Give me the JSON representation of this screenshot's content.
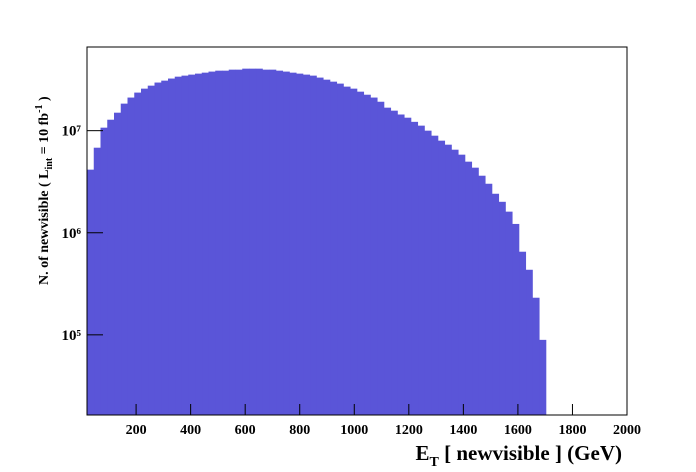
{
  "chart_data": {
    "type": "histogram",
    "x_label_parts": [
      "E",
      "T",
      " [ newvisible ] (GeV)"
    ],
    "y_label_parts": [
      "N. of newvisible ( L",
      "int",
      " = 10 fb",
      "-1",
      " )"
    ],
    "color": "#5a55d8",
    "log_y": true,
    "bins": [
      20,
      44.75,
      69.5,
      94.25,
      119,
      143.75,
      168.5,
      193.25,
      218,
      242.75,
      267.5,
      292.25,
      317,
      341.75,
      366.5,
      391.25,
      416,
      440.75,
      465.5,
      490.25,
      515,
      539.75,
      564.5,
      589.25,
      614,
      638.75,
      663.5,
      688.25,
      713,
      737.75,
      762.5,
      787.25,
      812,
      836.75,
      861.5,
      886.25,
      911,
      935.75,
      960.5,
      985.25,
      1010,
      1034.75,
      1059.5,
      1084.25,
      1109,
      1133.75,
      1158.5,
      1183.25,
      1208,
      1232.75,
      1257.5,
      1282.25,
      1307,
      1331.75,
      1356.5,
      1381.25,
      1406,
      1430.75,
      1455.5,
      1480.25,
      1505,
      1529.75,
      1554.5,
      1579.25,
      1604,
      1628.75,
      1653.5,
      1678.25,
      1703,
      1727.75,
      1752.5,
      1777.25,
      1802,
      1826.75,
      1851.5,
      1876.25,
      1901,
      1925.75,
      1950.5,
      1975.25,
      2000
    ],
    "values": [
      4150000,
      6810000,
      10700000,
      12800000,
      15000000,
      18400000,
      21100000,
      23600000,
      25800000,
      27600000,
      29600000,
      30900000,
      32400000,
      33800000,
      34600000,
      35400000,
      36200000,
      37000000,
      37900000,
      38700000,
      38700000,
      39600000,
      39600000,
      40500000,
      40500000,
      40500000,
      39600000,
      39600000,
      38700000,
      37900000,
      37000000,
      36200000,
      35400000,
      34600000,
      33100000,
      31600000,
      30200000,
      28900000,
      27000000,
      25800000,
      24100000,
      22500000,
      21100000,
      19200000,
      16800000,
      15700000,
      14400000,
      13400000,
      12200000,
      11200000,
      10000000,
      8930000,
      7980000,
      7290000,
      6510000,
      5820000,
      4970000,
      4340000,
      3620000,
      3020000,
      2410000,
      2010000,
      1610000,
      1220000,
      652000,
      434000,
      231000,
      89300,
      0,
      0,
      0,
      0,
      0,
      0,
      0,
      0,
      0,
      0,
      0,
      0
    ],
    "xlim": [
      20,
      2000
    ],
    "xticks": [
      200,
      400,
      600,
      800,
      1000,
      1200,
      1400,
      1600,
      1800,
      2000
    ],
    "ylim": [
      16400,
      66000000
    ],
    "yticks": [
      {
        "value": 100000,
        "label": "10⁵"
      },
      {
        "value": 1000000,
        "label": "10⁶"
      },
      {
        "value": 10000000,
        "label": "10⁷"
      }
    ]
  }
}
